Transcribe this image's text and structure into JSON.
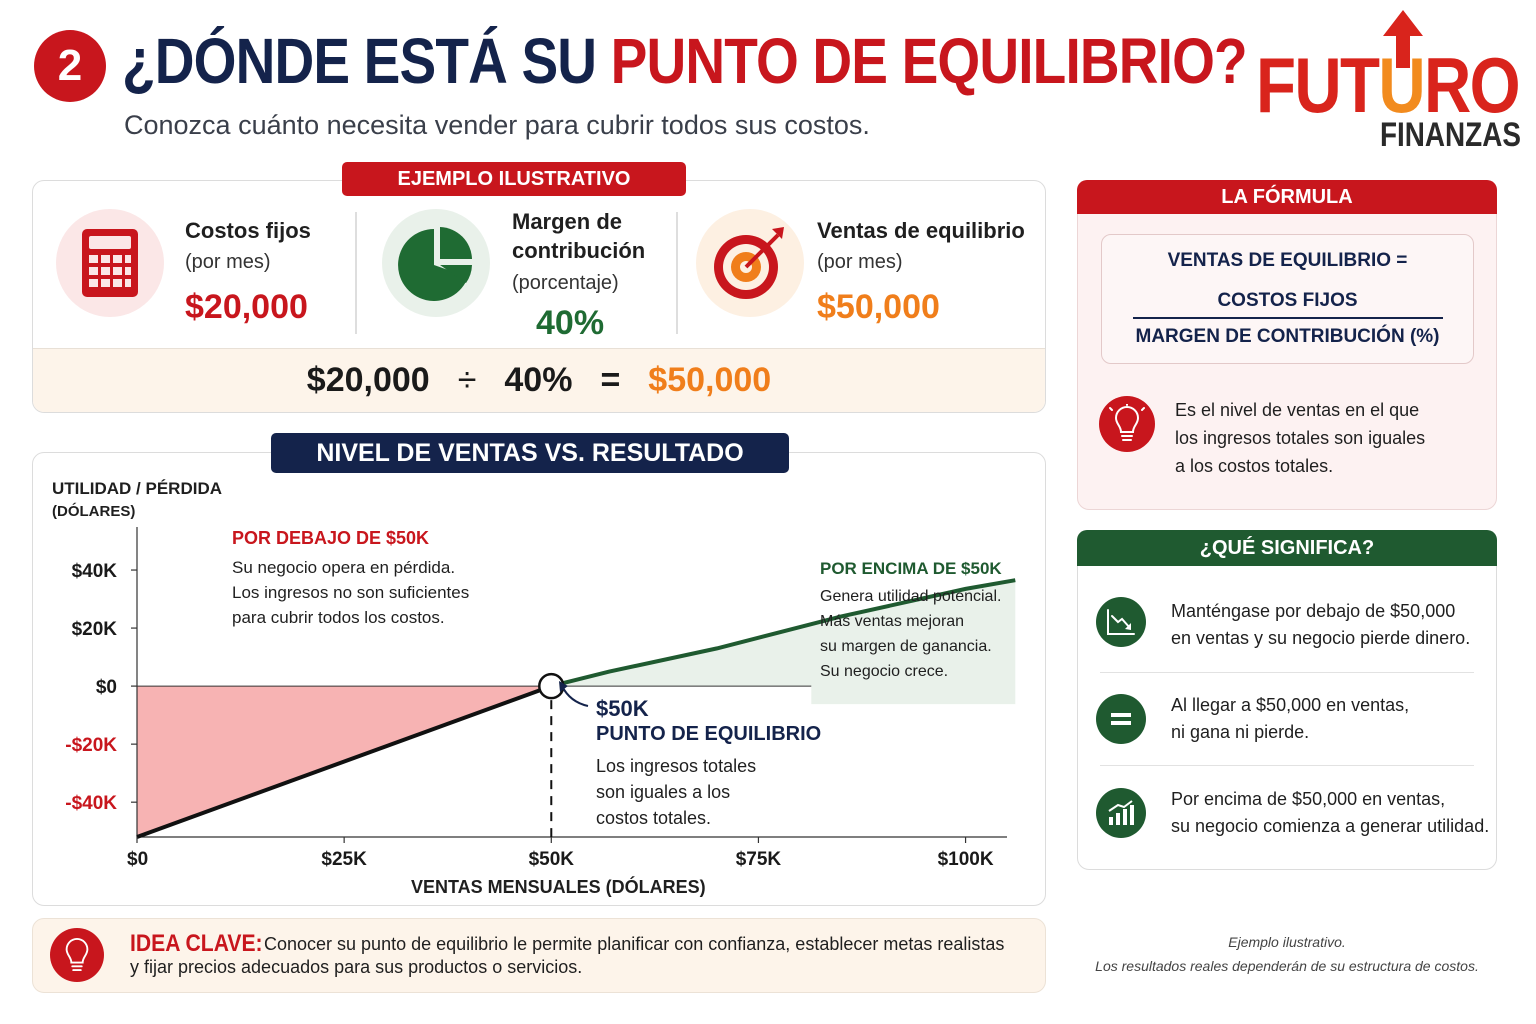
{
  "header": {
    "step_number": "2",
    "title_part1": "¿DÓNDE ESTÁ SU ",
    "title_part2": "PUNTO DE EQUILIBRIO?",
    "subtitle": "Conozca cuánto necesita vender para cubrir todos sus costos."
  },
  "logo": {
    "futuro_pre": "FUT",
    "futuro_u": "U",
    "futuro_post": "RO",
    "finanzas": "FINANZAS"
  },
  "example": {
    "pill": "EJEMPLO ILUSTRATIVO",
    "fixed_costs_label": "Costos fijos",
    "fixed_costs_sub": "(por mes)",
    "fixed_costs_value": "$20,000",
    "margin_label_1": "Margen de",
    "margin_label_2": "contribución",
    "margin_sub": "(porcentaje)",
    "margin_value": "40%",
    "breakeven_label": "Ventas de equilibrio",
    "breakeven_sub": "(por mes)",
    "breakeven_value": "$50,000",
    "eq_a": "$20,000",
    "eq_div": "÷",
    "eq_b": "40%",
    "eq_eq": "=",
    "eq_result": "$50,000"
  },
  "chart_section": {
    "pill": "NIVEL DE VENTAS VS. RESULTADO",
    "below_title": "POR DEBAJO DE $50K",
    "below_lines": [
      "Su negocio opera en pérdida.",
      "Los ingresos no son suficientes",
      "para cubrir todos los costos."
    ],
    "above_title": "POR ENCIMA DE $50K",
    "above_lines": [
      "Genera utilidad potencial.",
      "Más ventas mejoran",
      "su margen de ganancia.",
      "Su negocio crece."
    ],
    "bep_value": "$50K",
    "bep_title": "PUNTO DE EQUILIBRIO",
    "bep_lines": [
      "Los ingresos totales",
      "son iguales a los",
      "costos totales."
    ]
  },
  "chart_data": {
    "type": "line",
    "title": "NIVEL DE VENTAS VS. RESULTADO",
    "ylabel_1": "UTILIDAD / PÉRDIDA",
    "ylabel_2": "(DÓLARES)",
    "xlabel": "VENTAS MENSUALES (DÓLARES)",
    "x_ticks": [
      {
        "value": 0,
        "label": "$0"
      },
      {
        "value": 25000,
        "label": "$25K"
      },
      {
        "value": 50000,
        "label": "$50K"
      },
      {
        "value": 75000,
        "label": "$75K"
      },
      {
        "value": 100000,
        "label": "$100K"
      }
    ],
    "y_ticks": [
      {
        "value": 40000,
        "label": "$40K",
        "neg": false
      },
      {
        "value": 20000,
        "label": "$20K",
        "neg": false
      },
      {
        "value": 0,
        "label": "$0",
        "neg": false
      },
      {
        "value": -20000,
        "label": "-$20K",
        "neg": true
      },
      {
        "value": -40000,
        "label": "-$40K",
        "neg": true
      }
    ],
    "xlim": [
      0,
      105000
    ],
    "ylim": [
      -52000,
      60000
    ],
    "loss_segment": {
      "x": [
        0,
        50000
      ],
      "y": [
        -52000,
        0
      ]
    },
    "profit_segment": {
      "x": [
        50000,
        57000,
        70000,
        85000,
        100000,
        106000
      ],
      "y": [
        0,
        5000,
        13000,
        24000,
        33500,
        36500
      ]
    },
    "break_even": {
      "x": 50000,
      "y": 0
    },
    "colors": {
      "loss": "#f7b3b3",
      "loss_line": "#111111",
      "profit": "#e9f1ea",
      "profit_line": "#1f5a30",
      "neg_tick": "#c8161d"
    }
  },
  "formula": {
    "pill": "LA FÓRMULA",
    "line1": "VENTAS DE EQUILIBRIO =",
    "numerator": "COSTOS FIJOS",
    "denominator": "MARGEN DE CONTRIBUCIÓN (%)",
    "desc_lines": [
      "Es el nivel de ventas en el que",
      "los ingresos totales son iguales",
      "a los costos totales."
    ]
  },
  "meaning": {
    "pill": "¿QUÉ SIGNIFICA?",
    "items": [
      {
        "icon": "chart-down-icon",
        "line1": "Manténgase por debajo de $50,000",
        "line2": "en ventas y su negocio pierde dinero."
      },
      {
        "icon": "equals-icon",
        "line1": "Al llegar a $50,000 en ventas,",
        "line2": "ni gana ni pierde."
      },
      {
        "icon": "chart-up-icon",
        "line1": "Por encima de $50,000 en ventas,",
        "line2": "su negocio comienza a generar utilidad."
      }
    ]
  },
  "idea": {
    "title": "IDEA CLAVE:",
    "text1": "Conocer su punto de equilibrio le permite planificar con confianza, establecer metas realistas",
    "text2": "y fijar precios adecuados para sus productos o servicios."
  },
  "footnote": {
    "line1": "Ejemplo ilustrativo.",
    "line2": "Los resultados reales dependerán de su estructura de costos."
  }
}
